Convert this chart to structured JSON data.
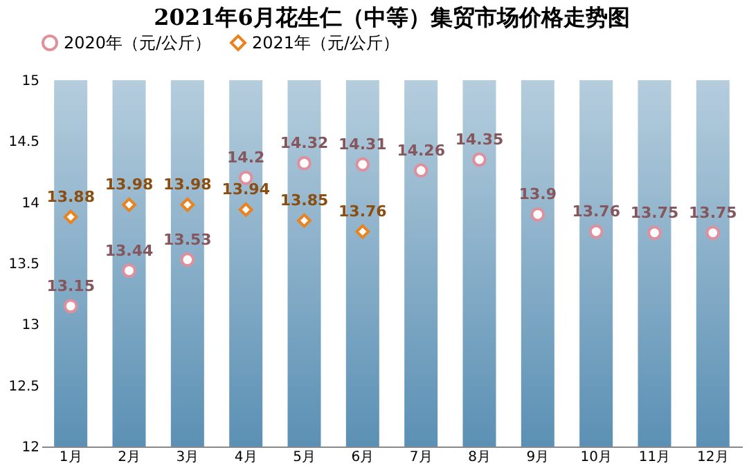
{
  "chart_data": {
    "type": "scatter",
    "title": "2021年6月花生仁（中等）集贸市场价格走势图",
    "categories": [
      "1月",
      "2月",
      "3月",
      "4月",
      "5月",
      "6月",
      "7月",
      "8月",
      "9月",
      "10月",
      "11月",
      "12月"
    ],
    "series": [
      {
        "type": "bar",
        "color": "#5b90b4",
        "values": [
          15,
          15,
          15,
          15,
          15,
          15,
          15,
          15,
          15,
          15,
          15,
          15
        ]
      },
      {
        "name": "2020年（元/公斤）",
        "color": "#e0909c",
        "marker": "circle",
        "values": [
          13.15,
          13.44,
          13.53,
          14.2,
          14.32,
          14.31,
          14.26,
          14.35,
          13.9,
          13.76,
          13.75,
          13.75
        ],
        "value_labels": [
          "13.15",
          "13.44",
          "13.53",
          "14.2",
          "14.32",
          "14.31",
          "14.26",
          "14.35",
          "13.9",
          "13.76",
          "13.75",
          "13.75"
        ]
      },
      {
        "name": "2021年（元/公斤）",
        "color": "#e8831f",
        "marker": "diamond",
        "values": [
          13.88,
          13.98,
          13.98,
          13.94,
          13.85,
          13.76,
          null,
          null,
          null,
          null,
          null,
          null
        ],
        "value_labels": [
          "13.88",
          "13.98",
          "13.98",
          "13.94",
          "13.85",
          "13.76",
          null,
          null,
          null,
          null,
          null,
          null
        ]
      }
    ],
    "ylim": [
      12,
      15
    ],
    "yticks": [
      12,
      12.5,
      13,
      13.5,
      14,
      14.5,
      15
    ],
    "legend": "top",
    "grid": false
  }
}
